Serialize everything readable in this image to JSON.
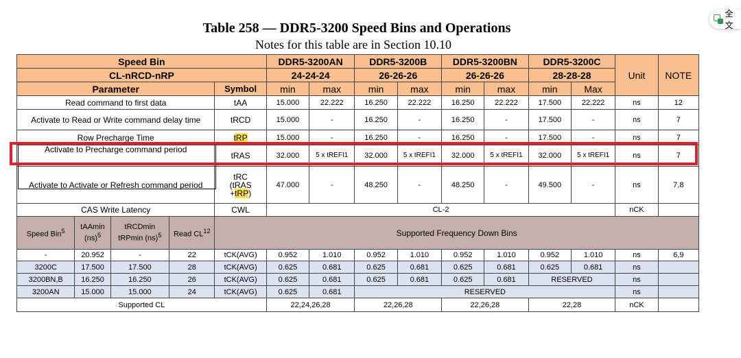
{
  "title": "Table 258 — DDR5-3200 Speed Bins and Operations",
  "subtitle": "Notes for this table are in Section 10.10",
  "translate_label": "全文",
  "header": {
    "speed_bin": "Speed Bin",
    "cl": "CL-nRCD-nRP",
    "parameter": "Parameter",
    "symbol": "Symbol",
    "unit": "Unit",
    "note": "NOTE",
    "bins": [
      {
        "name": "DDR5-3200AN",
        "timing": "24-24-24",
        "min": "min",
        "max": "max"
      },
      {
        "name": "DDR5-3200B",
        "timing": "26-26-26",
        "min": "min",
        "max": "max"
      },
      {
        "name": "DDR5-3200BN",
        "timing": "26-26-26",
        "min": "min",
        "max": "max"
      },
      {
        "name": "DDR5-3200C",
        "timing": "28-28-28",
        "min": "min",
        "max": "Max"
      }
    ]
  },
  "rows": [
    {
      "param": "Read command to first data",
      "symbol": "tAA",
      "v": [
        "15.000",
        "22.222",
        "16.250",
        "22.222",
        "16.250",
        "22.222",
        "17.500",
        "22.222"
      ],
      "unit": "ns",
      "note": "12"
    },
    {
      "param": "Activate to Read or Write command delay time",
      "symbol": "tRCD",
      "v": [
        "15.000",
        "-",
        "16.250",
        "-",
        "16.250",
        "-",
        "17.500",
        "-"
      ],
      "unit": "ns",
      "note": "7"
    },
    {
      "param": "Row Precharge Time",
      "symbol": "tRP",
      "v": [
        "15.000",
        "-",
        "16.250",
        "-",
        "16.250",
        "-",
        "17.500",
        "-"
      ],
      "unit": "ns",
      "note": "7"
    },
    {
      "param": "Activate to Precharge command period",
      "symbol": "tRAS",
      "v": [
        "32.000",
        "5 x tREFI1",
        "32.000",
        "5 x tREFI1",
        "32.000",
        "5 x tREFI1",
        "32.000",
        "5 x tREFI1"
      ],
      "unit": "ns",
      "note": "7"
    },
    {
      "param": "Activate to Activate or Refresh command period",
      "symbol_parts": [
        "tRC",
        "(tRAS",
        "+",
        "tRP",
        ")"
      ],
      "v": [
        "47.000",
        "-",
        "48.250",
        "-",
        "48.250",
        "-",
        "49.500",
        "-"
      ],
      "unit": "ns",
      "note": "7,8"
    }
  ],
  "cwl": {
    "param": "CAS Write Latency",
    "symbol": "CWL",
    "value": "CL-2",
    "unit": "nCK",
    "note": ""
  },
  "lower_header": {
    "speed_bin": "Speed Bin",
    "speed_bin_sup": "5",
    "taa": "tAAmin (ns)",
    "taa_sup": "5",
    "trcd": "tRCDmin tRPmin (ns)",
    "trcd_sup": "5",
    "read_cl": "Read CL",
    "read_cl_sup": "12",
    "supported": "Supported Frequency Down Bins"
  },
  "lower_rows": [
    {
      "bin": "-",
      "taa": "20.952",
      "trcd": "-",
      "cl": "22",
      "sym": "tCK(AVG)",
      "v": [
        "0.952",
        "1.010",
        "0.952",
        "1.010",
        "0.952",
        "1.010",
        "0.952",
        "1.010"
      ],
      "unit": "ns",
      "note": "6,9"
    },
    {
      "bin": "3200C",
      "taa": "17.500",
      "trcd": "17.500",
      "cl": "28",
      "sym": "tCK(AVG)",
      "v": [
        "0.625",
        "0.681",
        "0.625",
        "0.681",
        "0.625",
        "0.681",
        "0.625",
        "0.681"
      ],
      "unit": "ns",
      "note": ""
    },
    {
      "bin": "3200BN,B",
      "taa": "16.250",
      "trcd": "16.250",
      "cl": "26",
      "sym": "tCK(AVG)",
      "v": [
        "0.625",
        "0.681",
        "0.625",
        "0.681",
        "0.625",
        "0.681"
      ],
      "reserved": "RESERVED",
      "unit": "ns",
      "note": ""
    },
    {
      "bin": "3200AN",
      "taa": "15.000",
      "trcd": "15.000",
      "cl": "24",
      "sym": "tCK(AVG)",
      "v": [
        "0.625",
        "0.681"
      ],
      "reserved": "RESERVED",
      "unit": "ns",
      "note": ""
    }
  ],
  "supported_cl": {
    "label": "Supported CL",
    "values": [
      "22,24,26,28",
      "22,26,28",
      "22,26,28",
      "22,28"
    ],
    "unit": "nCK"
  },
  "colors": {
    "header": "#fac090",
    "lower_header": "#c4b0aa",
    "lower_rows": "#dbe2f0",
    "highlight": "#ffe14d",
    "red_box": "#e31d2b"
  }
}
